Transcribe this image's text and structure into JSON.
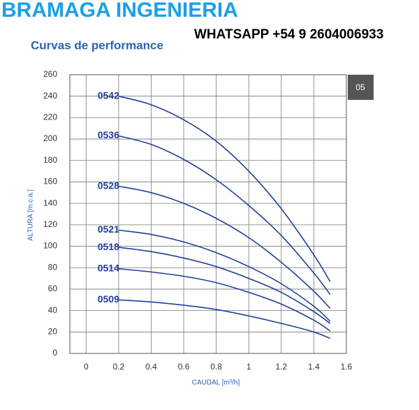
{
  "brand": "BRAMAGA INGENIERIA",
  "contact": "WHATSAPP  +54 9 2604006933",
  "page_number": "05",
  "chart_data": {
    "type": "line",
    "title": "Curvas de performance",
    "x_label": "CAUDAL [m³/h]",
    "y_label": "ALTURA [m.c.a.]",
    "x": [
      0.2,
      0.4,
      0.6,
      0.8,
      1,
      1.2,
      1.4,
      1.5
    ],
    "series": [
      {
        "name": "0542",
        "color": "#1f3f9a",
        "values": [
          240,
          232,
          218,
          198,
          170,
          135,
          92,
          67
        ]
      },
      {
        "name": "0536",
        "color": "#1f3f9a",
        "values": [
          203,
          195,
          181,
          162,
          138,
          110,
          75,
          55
        ]
      },
      {
        "name": "0528",
        "color": "#1f3f9a",
        "values": [
          156,
          150,
          140,
          126,
          108,
          85,
          58,
          42
        ]
      },
      {
        "name": "0521",
        "color": "#1f3f9a",
        "values": [
          115,
          111,
          104,
          94,
          81,
          65,
          44,
          30
        ]
      },
      {
        "name": "0518",
        "color": "#1f3f9a",
        "values": [
          99,
          95,
          89,
          81,
          70,
          57,
          39,
          28
        ]
      },
      {
        "name": "0514",
        "color": "#1f3f9a",
        "values": [
          79,
          76,
          72,
          66,
          57,
          46,
          31,
          21
        ]
      },
      {
        "name": "0509",
        "color": "#1f3f9a",
        "values": [
          50,
          48,
          45,
          41,
          35,
          28,
          20,
          14
        ]
      }
    ],
    "xlim": [
      -0.1,
      1.6
    ],
    "ylim": [
      0,
      260
    ],
    "xticks": [
      0,
      0.2,
      0.4,
      0.6,
      0.8,
      1,
      1.2,
      1.4,
      1.6
    ],
    "yticks": [
      0,
      20,
      40,
      60,
      80,
      100,
      120,
      140,
      160,
      180,
      200,
      220,
      240,
      260
    ],
    "grid": true
  }
}
